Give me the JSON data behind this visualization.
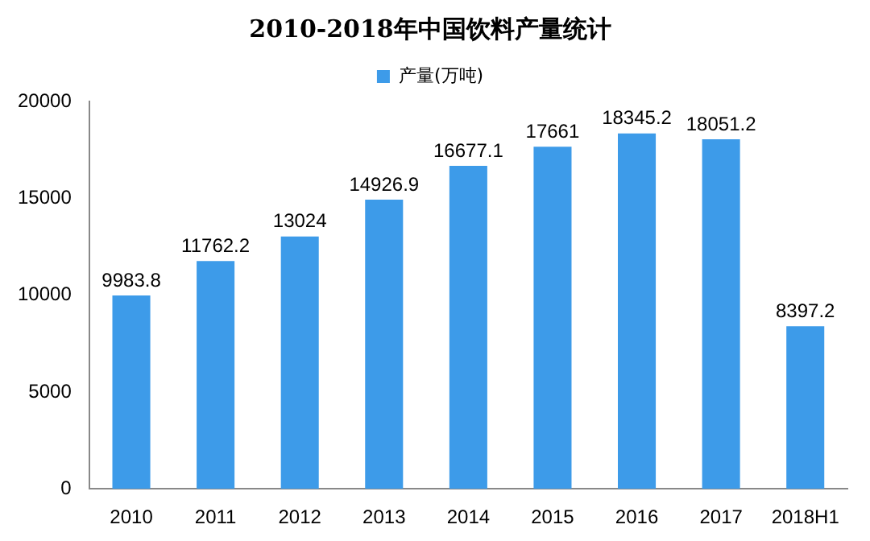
{
  "chart_data": {
    "type": "bar",
    "title": "2010-2018年中国饮料产量统计",
    "categories": [
      "2010",
      "2011",
      "2012",
      "2013",
      "2014",
      "2015",
      "2016",
      "2017",
      "2018H1"
    ],
    "series": [
      {
        "name": "产量(万吨)",
        "color": "#3d9be9",
        "values": [
          9983.8,
          11762.2,
          13024,
          14926.9,
          16677.1,
          17661,
          18345.2,
          18051.2,
          8397.2
        ]
      }
    ],
    "ylim": [
      0,
      20000
    ],
    "yticks": [
      0,
      5000,
      10000,
      15000,
      20000
    ],
    "grid": false,
    "legend": "top",
    "data_labels": true
  }
}
